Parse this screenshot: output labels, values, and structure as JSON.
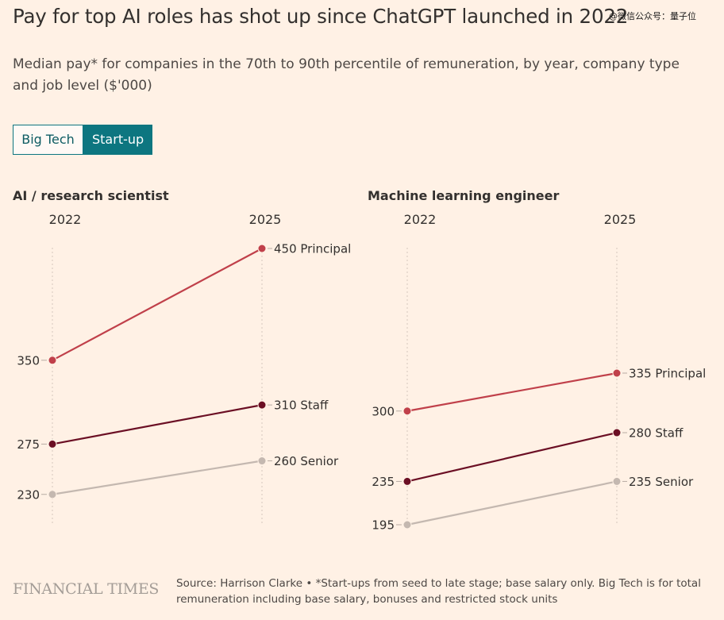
{
  "title": "Pay for top AI roles has shot up since ChatGPT launched in 2022",
  "watermark": "@微信公众号：量子位",
  "subtitle": "Median pay* for companies in the 70th to 90th percentile of remuneration, by year, company type and job level ($'000)",
  "toggle": {
    "options": [
      "Big Tech",
      "Start-up"
    ],
    "selected": "Start-up"
  },
  "colors": {
    "principal": "#c0404a",
    "staff": "#6b0f24",
    "senior": "#c4b8b0",
    "accent": "#0d7680",
    "background": "#fff1e5"
  },
  "chart_data": [
    {
      "type": "slope",
      "title": "AI / research scientist",
      "x": [
        "2022",
        "2025"
      ],
      "series": [
        {
          "name": "Principal",
          "values": [
            350,
            450
          ],
          "color": "#c0404a"
        },
        {
          "name": "Staff",
          "values": [
            275,
            310
          ],
          "color": "#6b0f24"
        },
        {
          "name": "Senior",
          "values": [
            230,
            260
          ],
          "color": "#c4b8b0"
        }
      ],
      "left_labels": [
        "350",
        "275",
        "230"
      ],
      "right_labels": [
        "450 Principal",
        "310 Staff",
        "260 Senior"
      ]
    },
    {
      "type": "slope",
      "title": "Machine learning engineer",
      "x": [
        "2022",
        "2025"
      ],
      "series": [
        {
          "name": "Principal",
          "values": [
            300,
            335
          ],
          "color": "#c0404a"
        },
        {
          "name": "Staff",
          "values": [
            235,
            280
          ],
          "color": "#6b0f24"
        },
        {
          "name": "Senior",
          "values": [
            195,
            235
          ],
          "color": "#c4b8b0"
        }
      ],
      "left_labels": [
        "300",
        "235",
        "195"
      ],
      "right_labels": [
        "335 Principal",
        "280 Staff",
        "235 Senior"
      ]
    }
  ],
  "footer": {
    "logo": "FINANCIAL TIMES",
    "source": "Source: Harrison Clarke • *Start-ups from seed to late stage; base salary only. Big Tech is for total remuneration including base salary, bonuses and restricted stock units"
  }
}
